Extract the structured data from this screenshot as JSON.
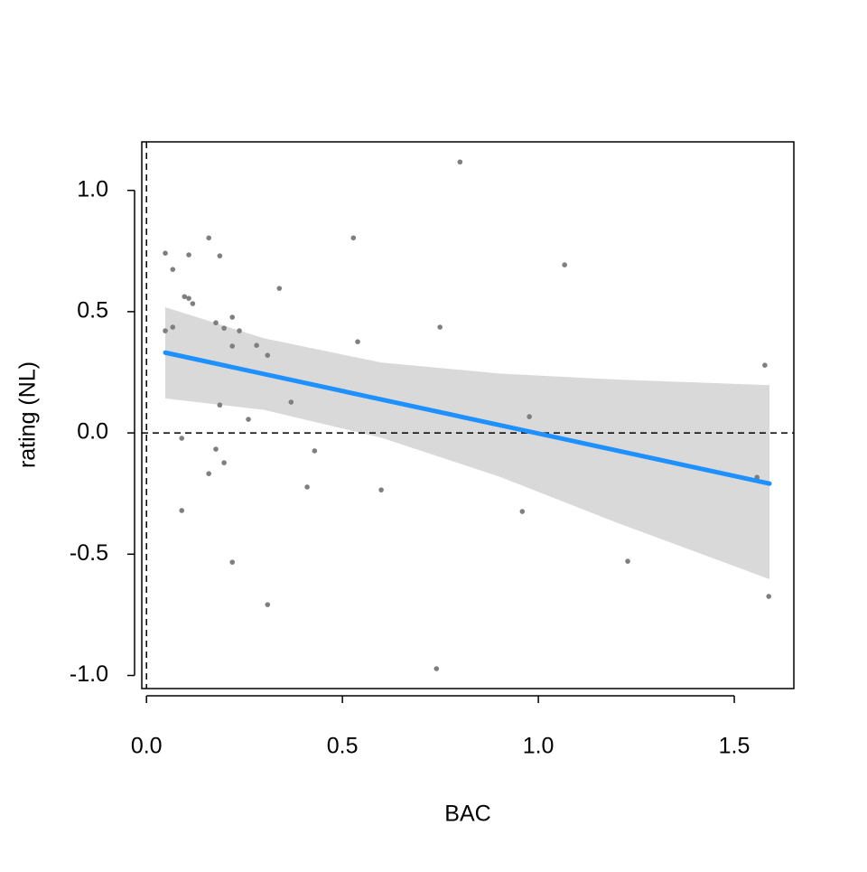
{
  "chart_data": {
    "type": "scatter",
    "xlabel": "BAC",
    "ylabel": "rating (NL)",
    "xlim": [
      -0.012,
      1.652
    ],
    "ylim": [
      -1.054,
      1.2
    ],
    "xticks": [
      {
        "value": 0,
        "label": "0.0"
      },
      0.5,
      {
        "value": 1,
        "label": "1.0"
      },
      1.5
    ],
    "yticks": [
      {
        "value": -1,
        "label": "-1.0"
      },
      -0.5,
      {
        "value": 0,
        "label": "0.0"
      },
      0.5,
      {
        "value": 1,
        "label": "1.0"
      }
    ],
    "point_color": "#7f7f7f",
    "x": [
      0.048,
      0.048,
      0.067,
      0.067,
      0.108,
      0.159,
      0.187,
      0.097,
      0.108,
      0.118,
      0.177,
      0.198,
      0.219,
      0.237,
      0.219,
      0.281,
      0.309,
      0.339,
      0.187,
      0.26,
      0.369,
      0.09,
      0.177,
      0.198,
      0.159,
      0.09,
      0.219,
      0.309,
      0.429,
      0.41,
      0.528,
      0.539,
      0.599,
      0.749,
      0.8,
      0.74,
      0.977,
      0.959,
      1.067,
      1.228,
      1.578,
      1.558,
      1.588
    ],
    "values": [
      0.741,
      0.421,
      0.674,
      0.436,
      0.734,
      0.804,
      0.73,
      0.562,
      0.555,
      0.533,
      0.454,
      0.432,
      0.477,
      0.421,
      0.358,
      0.361,
      0.32,
      0.596,
      0.115,
      0.056,
      0.127,
      -0.022,
      -0.067,
      -0.123,
      -0.168,
      -0.32,
      -0.533,
      -0.708,
      -0.074,
      -0.223,
      0.804,
      0.376,
      -0.235,
      0.436,
      1.117,
      -0.972,
      0.067,
      -0.324,
      0.693,
      -0.529,
      0.279,
      -0.183,
      -0.674
    ],
    "fit": {
      "color": "#1e90ff",
      "x": [
        0.048,
        1.59
      ],
      "values": [
        0.331,
        -0.209
      ]
    },
    "band": {
      "color": "#d9d9d9",
      "x": [
        0.048,
        0.3,
        0.6,
        0.9,
        1.2,
        1.59
      ],
      "upper": [
        0.518,
        0.39,
        0.29,
        0.245,
        0.22,
        0.197
      ],
      "lower": [
        0.142,
        0.095,
        -0.02,
        -0.18,
        -0.37,
        -0.603
      ]
    },
    "hline": 0,
    "vline": 0
  }
}
